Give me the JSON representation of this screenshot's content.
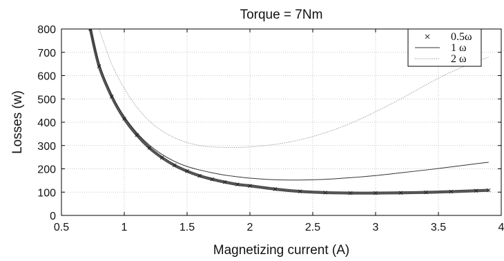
{
  "chart_data": {
    "type": "line",
    "title": "Torque = 7Nm",
    "xlabel": "Magnetizing current (A)",
    "ylabel": "Losses (w)",
    "xlim": [
      0.5,
      4
    ],
    "ylim": [
      0,
      800
    ],
    "xticks": [
      0.5,
      1,
      1.5,
      2,
      2.5,
      3,
      3.5,
      4
    ],
    "xtick_labels": [
      "0.5",
      "1",
      "1.5",
      "2",
      "2.5",
      "3",
      "3.5",
      "4"
    ],
    "yticks": [
      0,
      100,
      200,
      300,
      400,
      500,
      600,
      700,
      800
    ],
    "ytick_labels": [
      "0",
      "100",
      "200",
      "300",
      "400",
      "500",
      "600",
      "700",
      "800"
    ],
    "grid": true,
    "legend_position": "top-right",
    "series": [
      {
        "name": "0.5ω",
        "style": "marker-x",
        "color": "#4a4a4a",
        "x": [
          0.73,
          0.8,
          0.9,
          1.0,
          1.1,
          1.2,
          1.3,
          1.4,
          1.5,
          1.6,
          1.7,
          1.8,
          1.9,
          2.0,
          2.2,
          2.4,
          2.6,
          2.8,
          3.0,
          3.2,
          3.4,
          3.6,
          3.8,
          3.9
        ],
        "y": [
          800,
          640,
          510,
          415,
          345,
          290,
          248,
          215,
          190,
          170,
          155,
          143,
          133,
          127,
          113,
          103,
          98,
          96,
          96,
          97,
          99,
          102,
          106,
          108
        ]
      },
      {
        "name": "1 ω",
        "style": "solid",
        "color": "#333333",
        "x": [
          0.73,
          0.8,
          0.9,
          1.0,
          1.1,
          1.2,
          1.3,
          1.4,
          1.5,
          1.6,
          1.7,
          1.8,
          1.9,
          2.0,
          2.2,
          2.4,
          2.6,
          2.8,
          3.0,
          3.2,
          3.4,
          3.6,
          3.8,
          3.9
        ],
        "y": [
          800,
          650,
          518,
          425,
          355,
          302,
          262,
          232,
          210,
          195,
          183,
          173,
          166,
          160,
          153,
          152,
          155,
          162,
          171,
          183,
          195,
          208,
          222,
          228
        ]
      },
      {
        "name": "2 ω",
        "style": "dotted",
        "color": "#888888",
        "x": [
          0.8,
          0.9,
          1.0,
          1.1,
          1.2,
          1.3,
          1.4,
          1.5,
          1.6,
          1.7,
          1.8,
          1.9,
          2.0,
          2.2,
          2.4,
          2.6,
          2.8,
          3.0,
          3.2,
          3.4,
          3.6,
          3.8,
          3.9
        ],
        "y": [
          800,
          650,
          545,
          465,
          405,
          363,
          333,
          313,
          300,
          294,
          292,
          292,
          294,
          305,
          325,
          355,
          395,
          445,
          500,
          560,
          615,
          660,
          680
        ]
      }
    ]
  }
}
